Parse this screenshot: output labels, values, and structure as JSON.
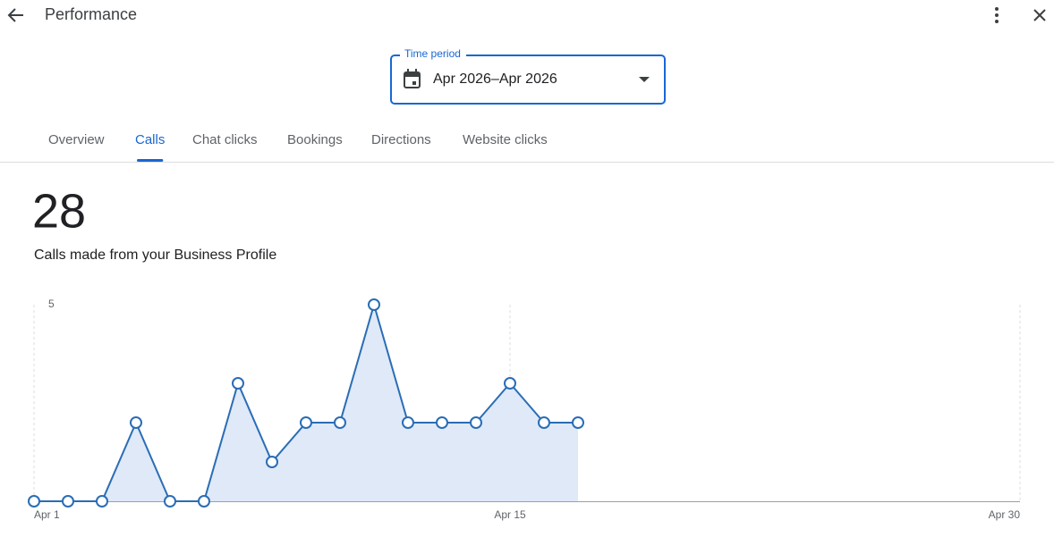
{
  "header": {
    "title": "Performance"
  },
  "time_period": {
    "label": "Time period",
    "value": "Apr 2026–Apr 2026"
  },
  "tabs": [
    {
      "label": "Overview",
      "selected": false
    },
    {
      "label": "Calls",
      "selected": true
    },
    {
      "label": "Chat clicks",
      "selected": false
    },
    {
      "label": "Bookings",
      "selected": false
    },
    {
      "label": "Directions",
      "selected": false
    },
    {
      "label": "Website clicks",
      "selected": false
    }
  ],
  "metric": {
    "value": 28,
    "description": "Calls made from your Business Profile"
  },
  "chart_data": {
    "type": "line",
    "x": [
      1,
      2,
      3,
      4,
      5,
      6,
      7,
      8,
      9,
      10,
      11,
      12,
      13,
      14,
      15,
      16,
      17
    ],
    "values": [
      0,
      0,
      0,
      2,
      0,
      0,
      3,
      1,
      2,
      2,
      5,
      2,
      2,
      2,
      3,
      2,
      2
    ],
    "color": "#2a6db5",
    "fill": "#dfe9f8",
    "xlim": [
      1,
      30
    ],
    "xticks": [
      {
        "value": 1,
        "label": "Apr 1"
      },
      {
        "value": 15,
        "label": "Apr 15"
      },
      {
        "value": 30,
        "label": "Apr 30"
      }
    ],
    "ylim": [
      0,
      5
    ],
    "yticks": [
      5
    ],
    "grid": true
  }
}
